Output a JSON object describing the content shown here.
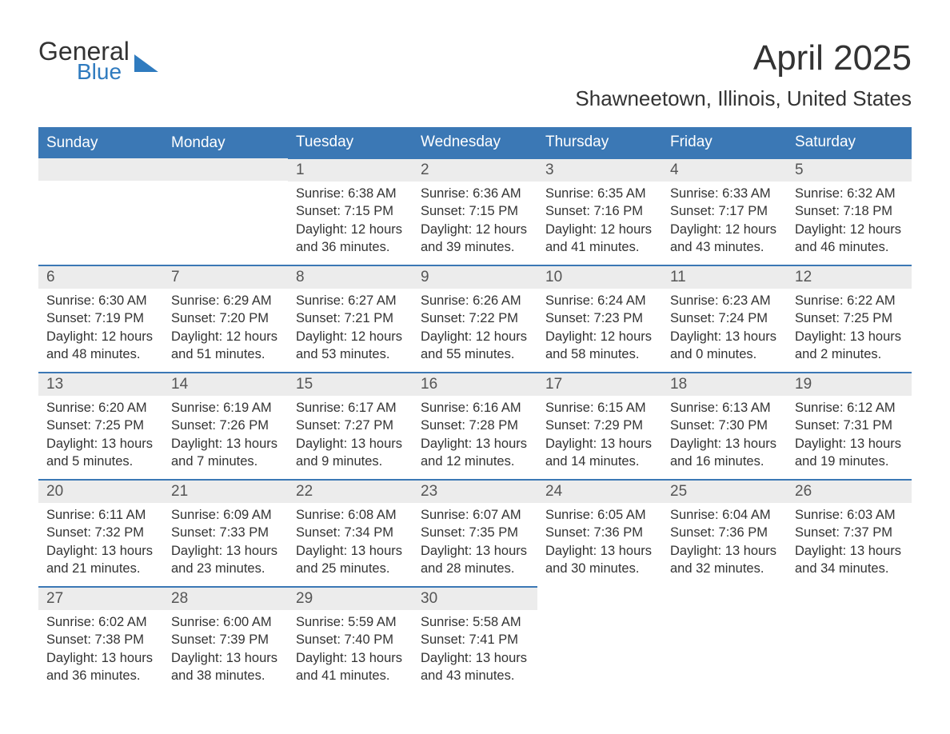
{
  "logo": {
    "line1": "General",
    "line2": "Blue"
  },
  "title": "April 2025",
  "location": "Shawneetown, Illinois, United States",
  "colors": {
    "header_bg": "#3b78b5",
    "header_text": "#ffffff",
    "daynum_bg": "#ececec",
    "body_text": "#333333",
    "accent": "#2f7bbf"
  },
  "dayNames": [
    "Sunday",
    "Monday",
    "Tuesday",
    "Wednesday",
    "Thursday",
    "Friday",
    "Saturday"
  ],
  "weeks": [
    [
      null,
      null,
      {
        "n": "1",
        "sr": "6:38 AM",
        "ss": "7:15 PM",
        "dl": "12 hours and 36 minutes."
      },
      {
        "n": "2",
        "sr": "6:36 AM",
        "ss": "7:15 PM",
        "dl": "12 hours and 39 minutes."
      },
      {
        "n": "3",
        "sr": "6:35 AM",
        "ss": "7:16 PM",
        "dl": "12 hours and 41 minutes."
      },
      {
        "n": "4",
        "sr": "6:33 AM",
        "ss": "7:17 PM",
        "dl": "12 hours and 43 minutes."
      },
      {
        "n": "5",
        "sr": "6:32 AM",
        "ss": "7:18 PM",
        "dl": "12 hours and 46 minutes."
      }
    ],
    [
      {
        "n": "6",
        "sr": "6:30 AM",
        "ss": "7:19 PM",
        "dl": "12 hours and 48 minutes."
      },
      {
        "n": "7",
        "sr": "6:29 AM",
        "ss": "7:20 PM",
        "dl": "12 hours and 51 minutes."
      },
      {
        "n": "8",
        "sr": "6:27 AM",
        "ss": "7:21 PM",
        "dl": "12 hours and 53 minutes."
      },
      {
        "n": "9",
        "sr": "6:26 AM",
        "ss": "7:22 PM",
        "dl": "12 hours and 55 minutes."
      },
      {
        "n": "10",
        "sr": "6:24 AM",
        "ss": "7:23 PM",
        "dl": "12 hours and 58 minutes."
      },
      {
        "n": "11",
        "sr": "6:23 AM",
        "ss": "7:24 PM",
        "dl": "13 hours and 0 minutes."
      },
      {
        "n": "12",
        "sr": "6:22 AM",
        "ss": "7:25 PM",
        "dl": "13 hours and 2 minutes."
      }
    ],
    [
      {
        "n": "13",
        "sr": "6:20 AM",
        "ss": "7:25 PM",
        "dl": "13 hours and 5 minutes."
      },
      {
        "n": "14",
        "sr": "6:19 AM",
        "ss": "7:26 PM",
        "dl": "13 hours and 7 minutes."
      },
      {
        "n": "15",
        "sr": "6:17 AM",
        "ss": "7:27 PM",
        "dl": "13 hours and 9 minutes."
      },
      {
        "n": "16",
        "sr": "6:16 AM",
        "ss": "7:28 PM",
        "dl": "13 hours and 12 minutes."
      },
      {
        "n": "17",
        "sr": "6:15 AM",
        "ss": "7:29 PM",
        "dl": "13 hours and 14 minutes."
      },
      {
        "n": "18",
        "sr": "6:13 AM",
        "ss": "7:30 PM",
        "dl": "13 hours and 16 minutes."
      },
      {
        "n": "19",
        "sr": "6:12 AM",
        "ss": "7:31 PM",
        "dl": "13 hours and 19 minutes."
      }
    ],
    [
      {
        "n": "20",
        "sr": "6:11 AM",
        "ss": "7:32 PM",
        "dl": "13 hours and 21 minutes."
      },
      {
        "n": "21",
        "sr": "6:09 AM",
        "ss": "7:33 PM",
        "dl": "13 hours and 23 minutes."
      },
      {
        "n": "22",
        "sr": "6:08 AM",
        "ss": "7:34 PM",
        "dl": "13 hours and 25 minutes."
      },
      {
        "n": "23",
        "sr": "6:07 AM",
        "ss": "7:35 PM",
        "dl": "13 hours and 28 minutes."
      },
      {
        "n": "24",
        "sr": "6:05 AM",
        "ss": "7:36 PM",
        "dl": "13 hours and 30 minutes."
      },
      {
        "n": "25",
        "sr": "6:04 AM",
        "ss": "7:36 PM",
        "dl": "13 hours and 32 minutes."
      },
      {
        "n": "26",
        "sr": "6:03 AM",
        "ss": "7:37 PM",
        "dl": "13 hours and 34 minutes."
      }
    ],
    [
      {
        "n": "27",
        "sr": "6:02 AM",
        "ss": "7:38 PM",
        "dl": "13 hours and 36 minutes."
      },
      {
        "n": "28",
        "sr": "6:00 AM",
        "ss": "7:39 PM",
        "dl": "13 hours and 38 minutes."
      },
      {
        "n": "29",
        "sr": "5:59 AM",
        "ss": "7:40 PM",
        "dl": "13 hours and 41 minutes."
      },
      {
        "n": "30",
        "sr": "5:58 AM",
        "ss": "7:41 PM",
        "dl": "13 hours and 43 minutes."
      },
      null,
      null,
      null
    ]
  ],
  "labels": {
    "sunrise": "Sunrise:",
    "sunset": "Sunset:",
    "daylight": "Daylight:"
  }
}
